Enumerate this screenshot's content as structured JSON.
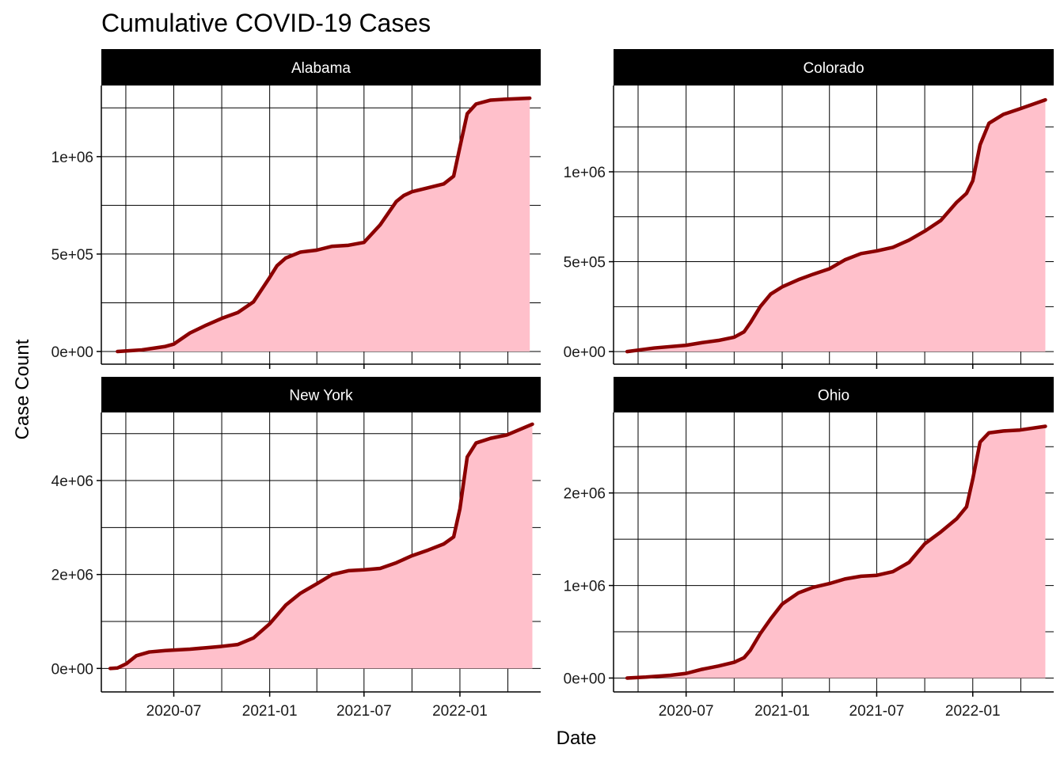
{
  "chart_data": {
    "type": "area",
    "title": "Cumulative COVID-19 Cases",
    "xlabel": "Date",
    "ylabel": "Case Count",
    "colors": {
      "line": "#8B0000",
      "fill": "#FFC0CB",
      "strip": "#000000",
      "grid": "#000000"
    },
    "x_tick_labels": [
      "2020-07",
      "2021-01",
      "2021-07",
      "2022-01"
    ],
    "x_tick_dates": [
      "2020-07-01",
      "2021-01-01",
      "2021-07-01",
      "2022-01-01"
    ],
    "x_range": [
      "2020-02-13",
      "2022-06-05"
    ],
    "grid": true,
    "panels": [
      {
        "name": "Alabama",
        "ylim": [
          -65000,
          1365000
        ],
        "y_ticks": [
          {
            "value": 0,
            "label": "0e+00"
          },
          {
            "value": 500000,
            "label": "5e+05"
          },
          {
            "value": 1000000,
            "label": "1e+06"
          }
        ],
        "series": {
          "dates": [
            "2020-03-15",
            "2020-05-01",
            "2020-06-15",
            "2020-07-01",
            "2020-08-01",
            "2020-09-01",
            "2020-10-01",
            "2020-11-01",
            "2020-12-01",
            "2021-01-01",
            "2021-01-15",
            "2021-02-01",
            "2021-03-01",
            "2021-04-01",
            "2021-05-01",
            "2021-06-01",
            "2021-07-01",
            "2021-08-01",
            "2021-09-01",
            "2021-09-15",
            "2021-10-01",
            "2021-11-01",
            "2021-12-01",
            "2021-12-20",
            "2022-01-01",
            "2022-01-15",
            "2022-02-01",
            "2022-03-01",
            "2022-04-01",
            "2022-05-15"
          ],
          "values": [
            0,
            8000,
            26000,
            38000,
            95000,
            135000,
            170000,
            200000,
            255000,
            380000,
            440000,
            480000,
            510000,
            520000,
            540000,
            545000,
            560000,
            650000,
            770000,
            800000,
            820000,
            840000,
            860000,
            900000,
            1050000,
            1220000,
            1270000,
            1290000,
            1295000,
            1300000
          ]
        }
      },
      {
        "name": "Colorado",
        "ylim": [
          -70000,
          1480000
        ],
        "y_ticks": [
          {
            "value": 0,
            "label": "0e+00"
          },
          {
            "value": 500000,
            "label": "5e+05"
          },
          {
            "value": 1000000,
            "label": "1e+06"
          }
        ],
        "series": {
          "dates": [
            "2020-03-10",
            "2020-05-01",
            "2020-07-01",
            "2020-08-01",
            "2020-09-01",
            "2020-10-01",
            "2020-10-20",
            "2020-11-01",
            "2020-11-20",
            "2020-12-10",
            "2021-01-01",
            "2021-02-01",
            "2021-03-01",
            "2021-04-01",
            "2021-05-01",
            "2021-06-01",
            "2021-07-01",
            "2021-08-01",
            "2021-09-01",
            "2021-10-01",
            "2021-11-01",
            "2021-12-01",
            "2021-12-20",
            "2022-01-01",
            "2022-01-15",
            "2022-02-01",
            "2022-03-01",
            "2022-04-01",
            "2022-05-20"
          ],
          "values": [
            0,
            20000,
            35000,
            50000,
            62000,
            80000,
            110000,
            160000,
            250000,
            320000,
            360000,
            400000,
            430000,
            460000,
            510000,
            545000,
            560000,
            580000,
            620000,
            670000,
            730000,
            830000,
            880000,
            950000,
            1150000,
            1270000,
            1320000,
            1350000,
            1400000
          ]
        }
      },
      {
        "name": "New York",
        "ylim": [
          -500000,
          5450000
        ],
        "y_ticks": [
          {
            "value": 0,
            "label": "0e+00"
          },
          {
            "value": 2000000,
            "label": "2e+06"
          },
          {
            "value": 4000000,
            "label": "4e+06"
          }
        ],
        "series": {
          "dates": [
            "2020-03-01",
            "2020-03-15",
            "2020-04-01",
            "2020-04-20",
            "2020-05-15",
            "2020-06-15",
            "2020-08-01",
            "2020-09-01",
            "2020-10-01",
            "2020-11-01",
            "2020-12-01",
            "2021-01-01",
            "2021-02-01",
            "2021-03-01",
            "2021-04-01",
            "2021-05-01",
            "2021-06-01",
            "2021-07-01",
            "2021-08-01",
            "2021-09-01",
            "2021-10-01",
            "2021-11-01",
            "2021-12-01",
            "2021-12-20",
            "2022-01-01",
            "2022-01-15",
            "2022-02-01",
            "2022-03-01",
            "2022-04-01",
            "2022-05-20"
          ],
          "values": [
            0,
            10000,
            100000,
            270000,
            350000,
            380000,
            410000,
            440000,
            470000,
            510000,
            650000,
            950000,
            1350000,
            1600000,
            1800000,
            2000000,
            2080000,
            2100000,
            2130000,
            2250000,
            2400000,
            2520000,
            2650000,
            2800000,
            3400000,
            4500000,
            4800000,
            4900000,
            4970000,
            5200000
          ]
        }
      },
      {
        "name": "Ohio",
        "ylim": [
          -150000,
          2870000
        ],
        "y_ticks": [
          {
            "value": 0,
            "label": "0e+00"
          },
          {
            "value": 1000000,
            "label": "1e+06"
          },
          {
            "value": 2000000,
            "label": "2e+06"
          }
        ],
        "series": {
          "dates": [
            "2020-03-10",
            "2020-04-15",
            "2020-06-01",
            "2020-07-01",
            "2020-08-01",
            "2020-09-01",
            "2020-10-01",
            "2020-10-20",
            "2020-11-01",
            "2020-11-20",
            "2020-12-10",
            "2021-01-01",
            "2021-02-01",
            "2021-03-01",
            "2021-04-01",
            "2021-05-01",
            "2021-06-01",
            "2021-07-01",
            "2021-08-01",
            "2021-09-01",
            "2021-10-01",
            "2021-11-01",
            "2021-12-01",
            "2021-12-20",
            "2022-01-01",
            "2022-01-15",
            "2022-02-01",
            "2022-03-01",
            "2022-04-01",
            "2022-05-20"
          ],
          "values": [
            0,
            10000,
            30000,
            50000,
            95000,
            130000,
            170000,
            220000,
            300000,
            480000,
            640000,
            800000,
            920000,
            980000,
            1020000,
            1070000,
            1100000,
            1110000,
            1150000,
            1250000,
            1450000,
            1580000,
            1720000,
            1850000,
            2150000,
            2550000,
            2650000,
            2670000,
            2680000,
            2720000
          ]
        }
      }
    ]
  }
}
